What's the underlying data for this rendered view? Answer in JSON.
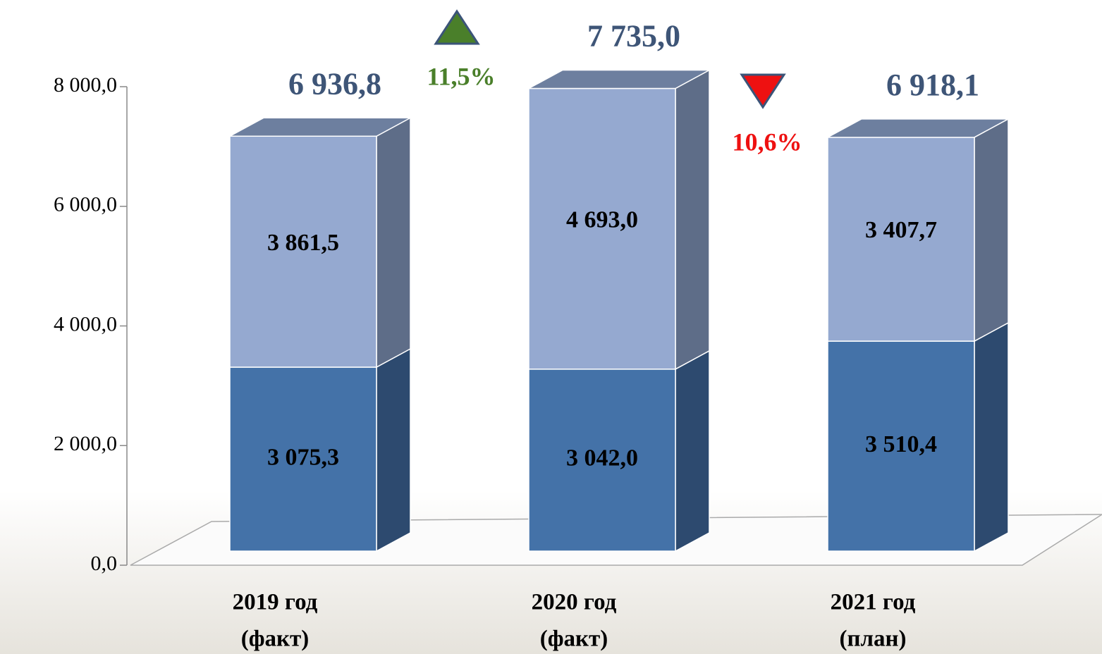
{
  "chart_data": {
    "type": "bar3d-stacked",
    "categories": [
      [
        "2019 год",
        "(факт)"
      ],
      [
        "2020 год",
        "(факт)"
      ],
      [
        "2021 год",
        "(план)"
      ]
    ],
    "series": [
      {
        "color": "#4472a8",
        "side_color": "#2d4a6f",
        "values": [
          3075.3,
          3042.0,
          3510.4
        ],
        "value_labels": [
          "3 075,3",
          "3 042,0",
          "3 510,4"
        ]
      },
      {
        "color": "#95a9d0",
        "side_color": "#5e6d88",
        "values": [
          3861.5,
          4693.0,
          3407.7
        ],
        "value_labels": [
          "3 861,5",
          "4 693,0",
          "3 407,7"
        ]
      }
    ],
    "totals": {
      "color": "#3e5577",
      "values": [
        6936.8,
        7735.0,
        6918.1
      ],
      "value_labels": [
        "6 936,8",
        "7 735,0",
        "6 918,1"
      ]
    },
    "changes": [
      {
        "value": 11.5,
        "label": "11,5%",
        "direction": "up",
        "color": "#4a7f2a"
      },
      {
        "value": -10.6,
        "label": "10,6%",
        "direction": "down",
        "color": "#ee1111"
      }
    ],
    "ylim": [
      0,
      8000
    ],
    "yticks": [
      {
        "value": 0,
        "label": "0,0"
      },
      {
        "value": 2000,
        "label": "2 000,0"
      },
      {
        "value": 4000,
        "label": "4 000,0"
      },
      {
        "value": 6000,
        "label": "6 000,0"
      },
      {
        "value": 8000,
        "label": "8 000,0"
      }
    ]
  }
}
